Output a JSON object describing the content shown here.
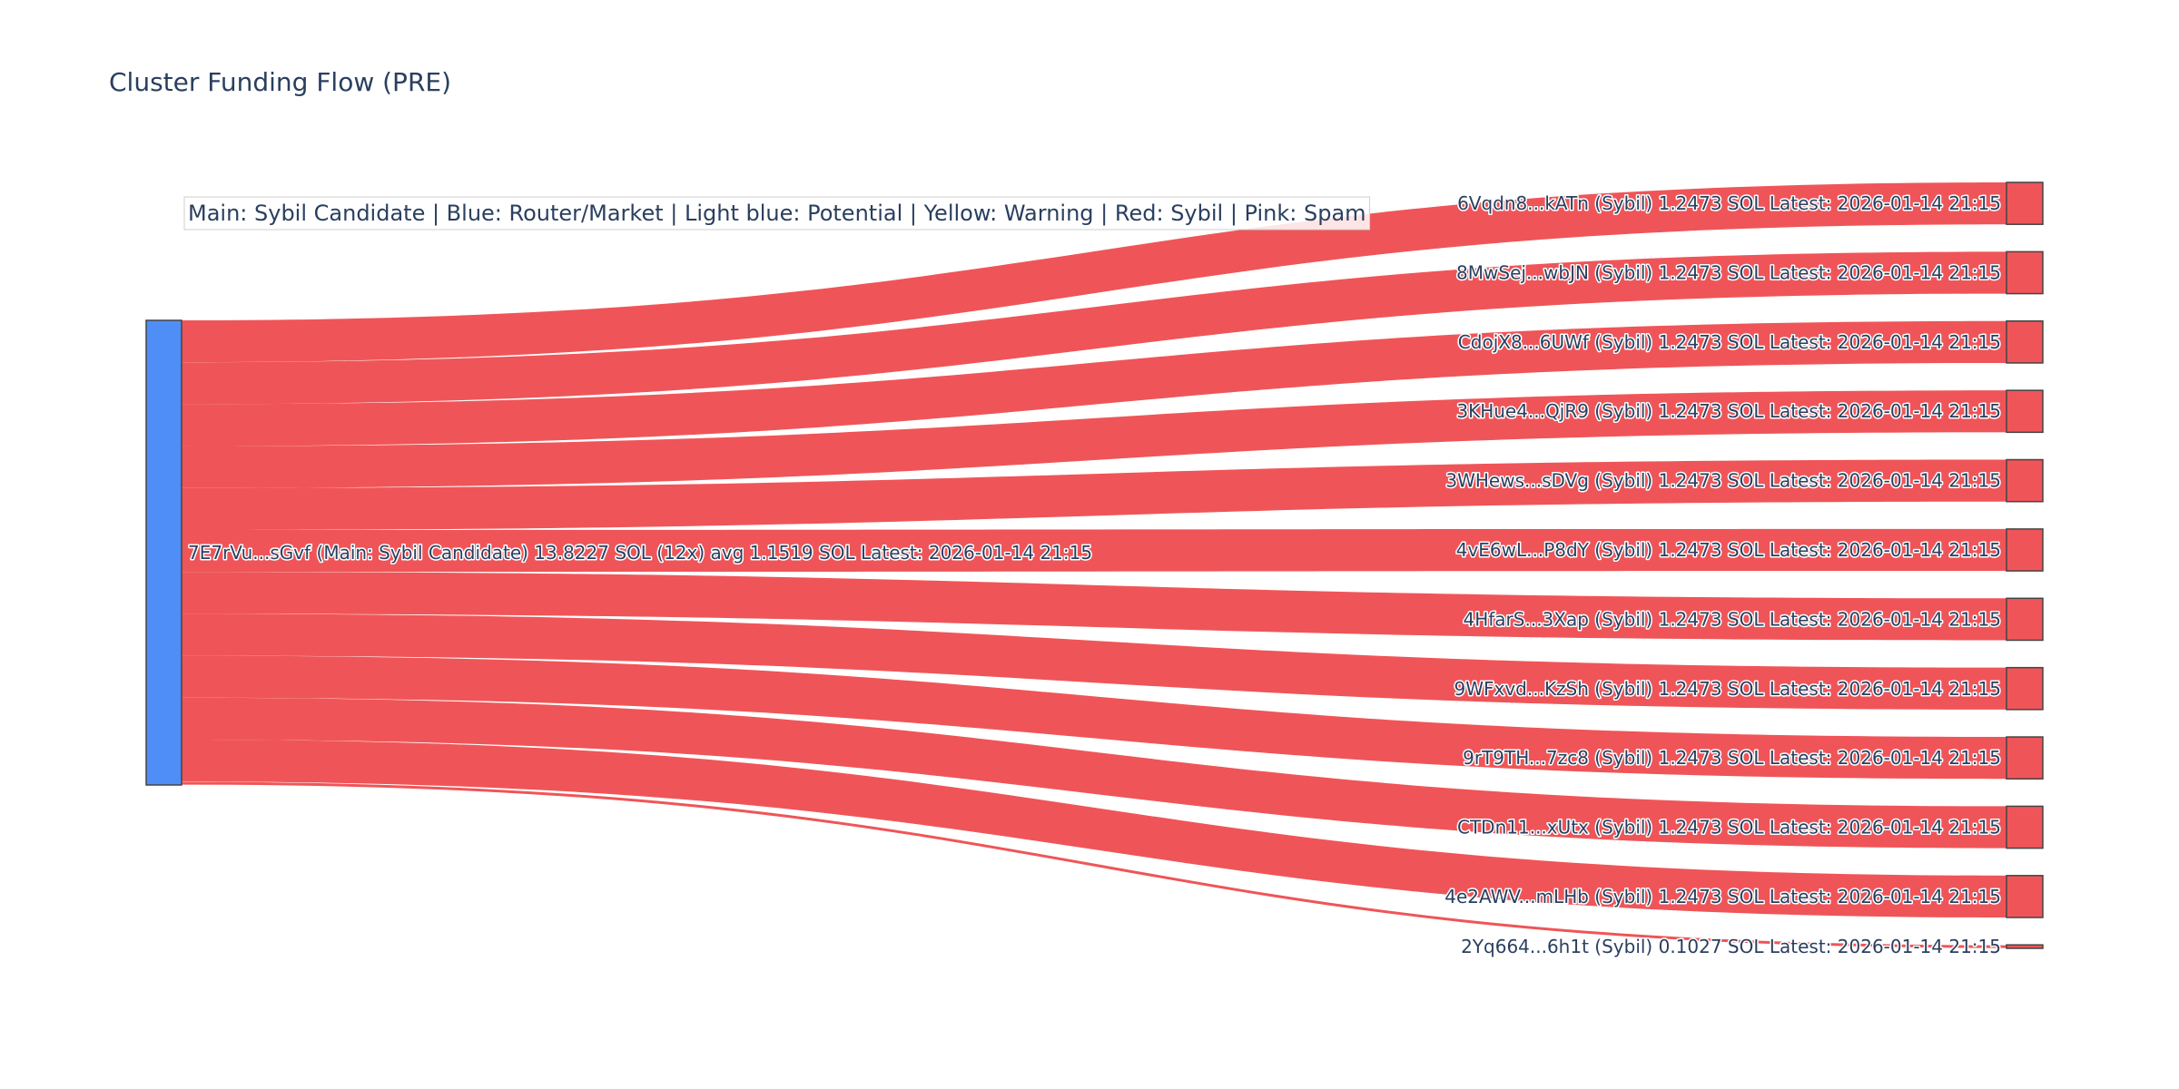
{
  "chart_data": {
    "type": "sankey",
    "title": "Cluster Funding Flow (PRE)",
    "legend_text": "Main: Sybil Candidate  |  Blue: Router/Market | Light blue: Potential | Yellow: Warning | Red: Sybil | Pink: Spam",
    "colors": {
      "source": "#4f8ef7",
      "sybil": "#ef5558",
      "node_border": "#444444"
    },
    "source": {
      "label": "7E7rVu...sGvf (Main: Sybil Candidate) 13.8227 SOL (12x) avg 1.1519 SOL Latest: 2026-01-14 21:15",
      "total": 13.8227
    },
    "targets": [
      {
        "label": "6Vqdn8...kATn (Sybil) 1.2473 SOL Latest: 2026-01-14 21:15",
        "value": 1.2473
      },
      {
        "label": "8MwSej...wbJN (Sybil) 1.2473 SOL Latest: 2026-01-14 21:15",
        "value": 1.2473
      },
      {
        "label": "CdojX8...6UWf (Sybil) 1.2473 SOL Latest: 2026-01-14 21:15",
        "value": 1.2473
      },
      {
        "label": "3KHue4...QjR9 (Sybil) 1.2473 SOL Latest: 2026-01-14 21:15",
        "value": 1.2473
      },
      {
        "label": "3WHews...sDVg (Sybil) 1.2473 SOL Latest: 2026-01-14 21:15",
        "value": 1.2473
      },
      {
        "label": "4vE6wL...P8dY (Sybil) 1.2473 SOL Latest: 2026-01-14 21:15",
        "value": 1.2473
      },
      {
        "label": "4HfarS...3Xap (Sybil) 1.2473 SOL Latest: 2026-01-14 21:15",
        "value": 1.2473
      },
      {
        "label": "9WFxvd...KzSh (Sybil) 1.2473 SOL Latest: 2026-01-14 21:15",
        "value": 1.2473
      },
      {
        "label": "9rT9TH...7zc8 (Sybil) 1.2473 SOL Latest: 2026-01-14 21:15",
        "value": 1.2473
      },
      {
        "label": "CTDn11...xUtx (Sybil) 1.2473 SOL Latest: 2026-01-14 21:15",
        "value": 1.2473
      },
      {
        "label": "4e2AWV...mLHb (Sybil) 1.2473 SOL Latest: 2026-01-14 21:15",
        "value": 1.2473
      },
      {
        "label": "2Yq664...6h1t (Sybil) 0.1027 SOL Latest: 2026-01-14 21:15",
        "value": 0.1027
      }
    ]
  }
}
